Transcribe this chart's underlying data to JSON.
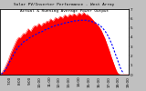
{
  "title_line1": "Solar PV/Inverter Performance - West Array",
  "title_line2": "Actual & Running Average Power Output",
  "title_fontsize": 3.2,
  "bg_color": "#c0c0c0",
  "plot_bg_color": "#ffffff",
  "grid_color": "#ffffff",
  "bar_color": "#ff0000",
  "avg_color": "#0000ff",
  "ylim": [
    0,
    1.0
  ],
  "n_points": 110,
  "actual_values": [
    0.01,
    0.02,
    0.04,
    0.07,
    0.1,
    0.14,
    0.18,
    0.22,
    0.27,
    0.32,
    0.36,
    0.4,
    0.44,
    0.48,
    0.52,
    0.55,
    0.57,
    0.56,
    0.58,
    0.61,
    0.63,
    0.62,
    0.64,
    0.67,
    0.7,
    0.68,
    0.66,
    0.69,
    0.72,
    0.74,
    0.75,
    0.73,
    0.76,
    0.78,
    0.76,
    0.74,
    0.77,
    0.79,
    0.78,
    0.8,
    0.82,
    0.8,
    0.83,
    0.85,
    0.83,
    0.82,
    0.84,
    0.87,
    0.86,
    0.85,
    0.87,
    0.89,
    0.88,
    0.86,
    0.89,
    0.91,
    0.9,
    0.88,
    0.9,
    0.92,
    0.91,
    0.9,
    0.92,
    0.93,
    0.91,
    0.9,
    0.92,
    0.94,
    0.93,
    0.91,
    0.93,
    0.95,
    0.93,
    0.91,
    0.92,
    0.9,
    0.89,
    0.87,
    0.85,
    0.83,
    0.81,
    0.79,
    0.77,
    0.75,
    0.73,
    0.7,
    0.67,
    0.63,
    0.59,
    0.55,
    0.5,
    0.45,
    0.4,
    0.35,
    0.29,
    0.24,
    0.19,
    0.14,
    0.09,
    0.05,
    0.02,
    0.01,
    0.0,
    0.0,
    0.0,
    0.0,
    0.0,
    0.0,
    0.0,
    0.0
  ],
  "avg_values": [
    0.0,
    0.01,
    0.02,
    0.04,
    0.06,
    0.09,
    0.12,
    0.15,
    0.19,
    0.22,
    0.25,
    0.29,
    0.32,
    0.35,
    0.38,
    0.41,
    0.43,
    0.44,
    0.46,
    0.48,
    0.5,
    0.51,
    0.52,
    0.53,
    0.55,
    0.56,
    0.57,
    0.58,
    0.59,
    0.6,
    0.61,
    0.62,
    0.63,
    0.64,
    0.65,
    0.65,
    0.66,
    0.67,
    0.68,
    0.69,
    0.7,
    0.7,
    0.71,
    0.72,
    0.73,
    0.73,
    0.74,
    0.75,
    0.75,
    0.76,
    0.76,
    0.77,
    0.77,
    0.78,
    0.78,
    0.79,
    0.79,
    0.79,
    0.8,
    0.8,
    0.81,
    0.81,
    0.81,
    0.82,
    0.82,
    0.82,
    0.82,
    0.83,
    0.83,
    0.83,
    0.83,
    0.83,
    0.83,
    0.83,
    0.82,
    0.82,
    0.82,
    0.81,
    0.81,
    0.8,
    0.79,
    0.79,
    0.78,
    0.77,
    0.76,
    0.75,
    0.73,
    0.71,
    0.69,
    0.67,
    0.64,
    0.61,
    0.58,
    0.54,
    0.5,
    0.46,
    0.41,
    0.36,
    0.31,
    0.26,
    0.21,
    0.16,
    0.11,
    0.07,
    0.04,
    0.02,
    0.0,
    0.0,
    0.0,
    0.0
  ],
  "xtick_labels": [
    "6:00",
    "7:00",
    "8:00",
    "9:00",
    "10:00",
    "11:00",
    "12:00",
    "13:00",
    "14:00",
    "15:00",
    "16:00",
    "17:00",
    "18:00",
    "19:00"
  ],
  "ytick_vals": [
    0.0,
    0.143,
    0.286,
    0.429,
    0.571,
    0.714,
    0.857,
    1.0
  ],
  "ytick_labels_right": [
    "0",
    "1",
    "2",
    "3",
    "4",
    "5",
    "6",
    "7"
  ],
  "tick_fontsize": 3.0
}
